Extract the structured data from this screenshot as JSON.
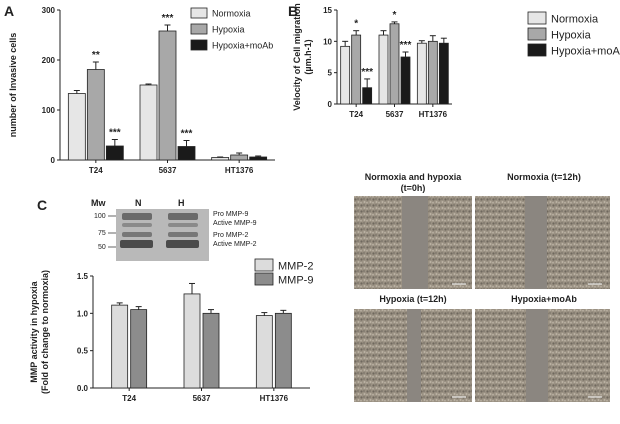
{
  "colors": {
    "normoxia": "#e6e6e6",
    "hypoxia": "#a8a8a8",
    "moab": "#1a1a1a",
    "mmp2": "#dcdcdc",
    "mmp9": "#8c8c8c",
    "axis": "#222222"
  },
  "panel_letters": {
    "a": "A",
    "b": "B",
    "c": "C"
  },
  "chart_data": [
    {
      "id": "A",
      "type": "bar",
      "categories": [
        "T24",
        "5637",
        "HT1376"
      ],
      "ylabel": "number of Invasive cells",
      "ylim": [
        0,
        300
      ],
      "yticks": [
        "0",
        "100",
        "200",
        "300"
      ],
      "series": [
        {
          "name": "Normoxia",
          "key": "normoxia",
          "values": [
            133,
            150,
            5
          ],
          "errors": [
            6,
            2,
            1
          ]
        },
        {
          "name": "Hypoxia",
          "key": "hypoxia",
          "values": [
            181,
            258,
            10
          ],
          "errors": [
            15,
            12,
            4
          ]
        },
        {
          "name": "Hypoxia+moAb",
          "key": "moab",
          "values": [
            28,
            27,
            6
          ],
          "errors": [
            13,
            12,
            2
          ]
        }
      ],
      "annotations": [
        {
          "cat": 0,
          "series": 1,
          "text": "**"
        },
        {
          "cat": 0,
          "series": 2,
          "text": "***"
        },
        {
          "cat": 1,
          "series": 1,
          "text": "***"
        },
        {
          "cat": 1,
          "series": 2,
          "text": "***"
        }
      ]
    },
    {
      "id": "B",
      "type": "bar",
      "categories": [
        "T24",
        "5637",
        "HT1376"
      ],
      "ylabel": "Velocity of Cell migration",
      "ylabel_unit": "(µm.h-1)",
      "ylim": [
        0,
        15
      ],
      "yticks": [
        "0",
        "5",
        "10",
        "15"
      ],
      "series": [
        {
          "name": "Normoxia",
          "key": "normoxia",
          "values": [
            9.2,
            11.0,
            9.7
          ],
          "errors": [
            0.8,
            0.7,
            0.4
          ]
        },
        {
          "name": "Hypoxia",
          "key": "hypoxia",
          "values": [
            11.0,
            12.8,
            10.0
          ],
          "errors": [
            0.7,
            0.3,
            0.9
          ]
        },
        {
          "name": "Hypoxia+moAb",
          "key": "moab",
          "values": [
            2.6,
            7.5,
            9.7
          ],
          "errors": [
            1.4,
            0.8,
            0.8
          ]
        }
      ],
      "annotations": [
        {
          "cat": 0,
          "series": 1,
          "text": "*"
        },
        {
          "cat": 0,
          "series": 2,
          "text": "***"
        },
        {
          "cat": 1,
          "series": 1,
          "text": "*"
        },
        {
          "cat": 1,
          "series": 2,
          "text": "***"
        }
      ]
    },
    {
      "id": "C",
      "type": "bar",
      "categories": [
        "T24",
        "5637",
        "HT1376"
      ],
      "ylabel": "MMP activity in hypoxia",
      "ylabel2": "(Fold of change to normoxia)",
      "ylim": [
        0,
        1.5
      ],
      "yticks": [
        "0.0",
        "0.5",
        "1.0",
        "1.5"
      ],
      "series": [
        {
          "name": "MMP-2",
          "key": "mmp2",
          "values": [
            1.11,
            1.26,
            0.97
          ],
          "errors": [
            0.03,
            0.14,
            0.04
          ]
        },
        {
          "name": "MMP-9",
          "key": "mmp9",
          "values": [
            1.05,
            1.0,
            1.0
          ],
          "errors": [
            0.04,
            0.05,
            0.04
          ]
        }
      ],
      "annotations": []
    }
  ],
  "gel": {
    "mw_label": "Mw",
    "lane_n": "N",
    "lane_h": "H",
    "mw_marks": [
      "100",
      "75",
      "50"
    ],
    "bands": [
      "Pro MMP-9",
      "Active MMP-9",
      "Pro MMP-2",
      "Active MMP-2"
    ]
  },
  "micrographs": [
    {
      "title": "Normoxia and hypoxia",
      "subtitle": "(t=0h)"
    },
    {
      "title": "Normoxia (t=12h)",
      "subtitle": ""
    },
    {
      "title": "Hypoxia (t=12h)",
      "subtitle": ""
    },
    {
      "title": "Hypoxia+moAb",
      "subtitle": ""
    }
  ]
}
